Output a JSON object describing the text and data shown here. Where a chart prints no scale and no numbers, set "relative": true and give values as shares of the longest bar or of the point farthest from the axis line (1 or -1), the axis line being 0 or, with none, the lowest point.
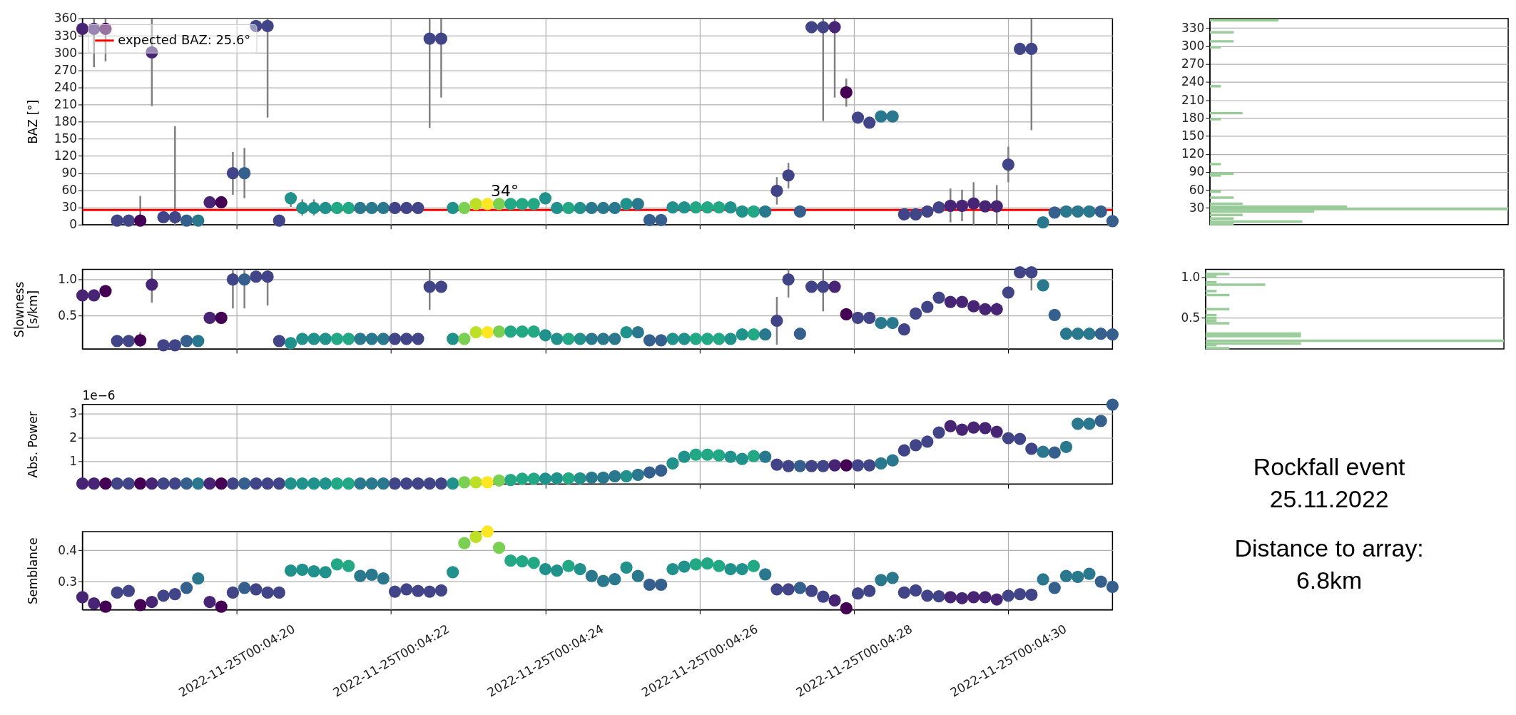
{
  "chart_data": [
    {
      "type": "scatter",
      "ylabel": "BAZ [°]",
      "marker": "circle",
      "grid": true,
      "legend": "top left",
      "tick_labels": "y",
      "x": [
        "2022-11-25T00:04:18.00",
        "2022-11-25T00:04:18.15",
        "2022-11-25T00:04:18.30",
        "2022-11-25T00:04:18.45",
        "2022-11-25T00:04:18.60",
        "2022-11-25T00:04:18.75",
        "2022-11-25T00:04:18.90",
        "2022-11-25T00:04:19.05",
        "2022-11-25T00:04:19.20",
        "2022-11-25T00:04:19.35",
        "2022-11-25T00:04:19.50",
        "2022-11-25T00:04:19.65",
        "2022-11-25T00:04:19.80",
        "2022-11-25T00:04:19.95",
        "2022-11-25T00:04:20.10",
        "2022-11-25T00:04:20.25",
        "2022-11-25T00:04:20.40",
        "2022-11-25T00:04:20.55",
        "2022-11-25T00:04:20.70",
        "2022-11-25T00:04:20.85",
        "2022-11-25T00:04:21.00",
        "2022-11-25T00:04:21.15",
        "2022-11-25T00:04:21.30",
        "2022-11-25T00:04:21.45",
        "2022-11-25T00:04:21.60",
        "2022-11-25T00:04:21.75",
        "2022-11-25T00:04:21.90",
        "2022-11-25T00:04:22.05",
        "2022-11-25T00:04:22.20",
        "2022-11-25T00:04:22.35",
        "2022-11-25T00:04:22.50",
        "2022-11-25T00:04:22.65",
        "2022-11-25T00:04:22.80",
        "2022-11-25T00:04:22.95",
        "2022-11-25T00:04:23.10",
        "2022-11-25T00:04:23.25",
        "2022-11-25T00:04:23.40",
        "2022-11-25T00:04:23.55",
        "2022-11-25T00:04:23.70",
        "2022-11-25T00:04:23.85",
        "2022-11-25T00:04:24.00",
        "2022-11-25T00:04:24.15",
        "2022-11-25T00:04:24.30",
        "2022-11-25T00:04:24.45",
        "2022-11-25T00:04:24.60",
        "2022-11-25T00:04:24.75",
        "2022-11-25T00:04:24.90",
        "2022-11-25T00:04:25.05",
        "2022-11-25T00:04:25.20",
        "2022-11-25T00:04:25.35",
        "2022-11-25T00:04:25.50",
        "2022-11-25T00:04:25.65",
        "2022-11-25T00:04:25.80",
        "2022-11-25T00:04:25.95",
        "2022-11-25T00:04:26.10",
        "2022-11-25T00:04:26.25",
        "2022-11-25T00:04:26.40",
        "2022-11-25T00:04:26.55",
        "2022-11-25T00:04:26.70",
        "2022-11-25T00:04:26.85",
        "2022-11-25T00:04:27.00",
        "2022-11-25T00:04:27.15",
        "2022-11-25T00:04:27.30",
        "2022-11-25T00:04:27.45",
        "2022-11-25T00:04:27.60",
        "2022-11-25T00:04:27.75",
        "2022-11-25T00:04:27.90",
        "2022-11-25T00:04:28.05",
        "2022-11-25T00:04:28.20",
        "2022-11-25T00:04:28.35",
        "2022-11-25T00:04:28.50",
        "2022-11-25T00:04:28.65",
        "2022-11-25T00:04:28.80",
        "2022-11-25T00:04:28.95",
        "2022-11-25T00:04:29.10",
        "2022-11-25T00:04:29.25",
        "2022-11-25T00:04:29.40",
        "2022-11-25T00:04:29.55",
        "2022-11-25T00:04:29.70",
        "2022-11-25T00:04:29.85",
        "2022-11-25T00:04:30.00",
        "2022-11-25T00:04:30.15",
        "2022-11-25T00:04:30.30",
        "2022-11-25T00:04:30.45",
        "2022-11-25T00:04:30.60",
        "2022-11-25T00:04:30.75",
        "2022-11-25T00:04:30.90",
        "2022-11-25T00:04:31.05",
        "2022-11-25T00:04:31.20",
        "2022-11-25T00:04:31.35"
      ],
      "values": [
        342,
        342,
        342,
        7,
        7,
        7,
        301,
        13,
        13,
        7,
        7,
        39,
        39,
        90,
        90,
        347,
        347,
        7,
        46,
        29,
        29,
        29,
        29,
        29,
        29,
        29,
        29,
        29,
        29,
        29,
        325,
        325,
        29,
        29,
        36,
        36,
        36,
        36,
        36,
        36,
        46,
        29,
        29,
        29,
        29,
        29,
        29,
        36,
        36,
        8,
        8,
        30,
        30,
        30,
        30,
        30,
        30,
        23,
        23,
        23,
        59,
        86,
        23,
        345,
        345,
        345,
        231,
        187,
        178,
        189,
        189,
        18,
        18,
        23,
        30,
        33,
        33,
        37,
        32,
        32,
        105,
        307,
        307,
        4,
        21,
        23,
        23,
        23,
        23,
        6
      ],
      "errors": [
        null,
        [
          275,
          360
        ],
        [
          285,
          360
        ],
        null,
        null,
        [
          0,
          50
        ],
        [
          207,
          360
        ],
        null,
        [
          0,
          172
        ],
        null,
        null,
        null,
        null,
        [
          52,
          127
        ],
        [
          46,
          134
        ],
        null,
        [
          187,
          360
        ],
        null,
        [
          31,
          57
        ],
        [
          16,
          44
        ],
        [
          16,
          44
        ],
        null,
        null,
        null,
        null,
        null,
        null,
        null,
        null,
        null,
        [
          169,
          360
        ],
        [
          222,
          360
        ],
        null,
        null,
        null,
        null,
        null,
        null,
        null,
        null,
        null,
        null,
        null,
        null,
        null,
        null,
        null,
        null,
        null,
        null,
        null,
        null,
        null,
        null,
        null,
        null,
        null,
        null,
        null,
        null,
        [
          35,
          83
        ],
        [
          63,
          108
        ],
        null,
        null,
        [
          181,
          360
        ],
        [
          222,
          360
        ],
        [
          206,
          255
        ],
        null,
        null,
        null,
        null,
        null,
        null,
        null,
        null,
        [
          4,
          63
        ],
        [
          6,
          61
        ],
        [
          0,
          74
        ],
        null,
        [
          0,
          69
        ],
        [
          74,
          136
        ],
        null,
        [
          165,
          360
        ],
        null,
        null,
        null,
        null,
        null,
        null,
        null
      ],
      "colors": [
        "#482475",
        "#482475",
        "#440154",
        "#414487",
        "#414487",
        "#440154",
        "#482475",
        "#414487",
        "#414487",
        "#355f8d",
        "#2a788e",
        "#482475",
        "#440154",
        "#414487",
        "#355f8d",
        "#414487",
        "#414487",
        "#414487",
        "#21918c",
        "#21918c",
        "#21918c",
        "#21918c",
        "#22a884",
        "#22a884",
        "#2a788e",
        "#2a788e",
        "#2a788e",
        "#414487",
        "#414487",
        "#414487",
        "#414487",
        "#414487",
        "#21918c",
        "#7ad151",
        "#bddf26",
        "#fde725",
        "#7ad151",
        "#22a884",
        "#22a884",
        "#22a884",
        "#21918c",
        "#21918c",
        "#22a884",
        "#21918c",
        "#2a788e",
        "#2a788e",
        "#2a788e",
        "#21918c",
        "#2a788e",
        "#355f8d",
        "#355f8d",
        "#21918c",
        "#21918c",
        "#22a884",
        "#22a884",
        "#22a884",
        "#21918c",
        "#21918c",
        "#22a884",
        "#2a788e",
        "#414487",
        "#414487",
        "#355f8d",
        "#414487",
        "#414487",
        "#482475",
        "#440154",
        "#414487",
        "#414487",
        "#2a788e",
        "#2a788e",
        "#414487",
        "#414487",
        "#414487",
        "#414487",
        "#482475",
        "#482475",
        "#482475",
        "#482475",
        "#482475",
        "#414487",
        "#414487",
        "#414487",
        "#2a788e",
        "#355f8d",
        "#2a788e",
        "#2a788e",
        "#2a788e",
        "#355f8d",
        "#355f8d"
      ],
      "xlim": [
        "2022-11-25T00:04:18.00",
        "2022-11-25T00:04:31.35"
      ],
      "xticks": [
        "2022-11-25T00:04:20",
        "2022-11-25T00:04:22",
        "2022-11-25T00:04:24",
        "2022-11-25T00:04:26",
        "2022-11-25T00:04:28",
        "2022-11-25T00:04:30"
      ],
      "ylim": [
        0,
        360
      ],
      "yticks": [
        0,
        30,
        60,
        90,
        120,
        150,
        180,
        210,
        240,
        270,
        300,
        330,
        360
      ],
      "ref_lines": [
        {
          "axis": "y",
          "value": 25.6,
          "label": "expected BAZ: 25.6°",
          "color": "#ff0000"
        }
      ],
      "annotations": [
        {
          "text": "34°",
          "x": "2022-11-25T00:04:23.40",
          "y": 34
        }
      ]
    },
    {
      "type": "bar",
      "orientation": "horizontal",
      "relative": true,
      "color": "#99cc99",
      "grid": "y",
      "x": [
        3,
        7,
        12,
        18,
        24,
        28,
        32,
        37,
        47,
        57,
        84,
        87,
        103,
        178,
        188,
        233,
        298,
        308,
        323,
        343
      ],
      "values": [
        0.08,
        0.31,
        0.08,
        0.11,
        0.35,
        1.0,
        0.46,
        0.11,
        0.08,
        0.037,
        0.037,
        0.08,
        0.037,
        0.037,
        0.11,
        0.037,
        0.037,
        0.08,
        0.08,
        0.23
      ],
      "ylim": [
        2,
        346
      ],
      "yticks": [
        30,
        60,
        90,
        120,
        150,
        180,
        210,
        240,
        270,
        300,
        330
      ]
    },
    {
      "type": "scatter",
      "ylabel": "Slowness\n[s/km]",
      "marker": "circle",
      "grid": true,
      "tick_labels": "y",
      "x": [
        "2022-11-25T00:04:18.00",
        "2022-11-25T00:04:18.15",
        "2022-11-25T00:04:18.30",
        "2022-11-25T00:04:18.45",
        "2022-11-25T00:04:18.60",
        "2022-11-25T00:04:18.75",
        "2022-11-25T00:04:18.90",
        "2022-11-25T00:04:19.05",
        "2022-11-25T00:04:19.20",
        "2022-11-25T00:04:19.35",
        "2022-11-25T00:04:19.50",
        "2022-11-25T00:04:19.65",
        "2022-11-25T00:04:19.80",
        "2022-11-25T00:04:19.95",
        "2022-11-25T00:04:20.10",
        "2022-11-25T00:04:20.25",
        "2022-11-25T00:04:20.40",
        "2022-11-25T00:04:20.55",
        "2022-11-25T00:04:20.70",
        "2022-11-25T00:04:20.85",
        "2022-11-25T00:04:21.00",
        "2022-11-25T00:04:21.15",
        "2022-11-25T00:04:21.30",
        "2022-11-25T00:04:21.45",
        "2022-11-25T00:04:21.60",
        "2022-11-25T00:04:21.75",
        "2022-11-25T00:04:21.90",
        "2022-11-25T00:04:22.05",
        "2022-11-25T00:04:22.20",
        "2022-11-25T00:04:22.35",
        "2022-11-25T00:04:22.50",
        "2022-11-25T00:04:22.65",
        "2022-11-25T00:04:22.80",
        "2022-11-25T00:04:22.95",
        "2022-11-25T00:04:23.10",
        "2022-11-25T00:04:23.25",
        "2022-11-25T00:04:23.40",
        "2022-11-25T00:04:23.55",
        "2022-11-25T00:04:23.70",
        "2022-11-25T00:04:23.85",
        "2022-11-25T00:04:24.00",
        "2022-11-25T00:04:24.15",
        "2022-11-25T00:04:24.30",
        "2022-11-25T00:04:24.45",
        "2022-11-25T00:04:24.60",
        "2022-11-25T00:04:24.75",
        "2022-11-25T00:04:24.90",
        "2022-11-25T00:04:25.05",
        "2022-11-25T00:04:25.20",
        "2022-11-25T00:04:25.35",
        "2022-11-25T00:04:25.50",
        "2022-11-25T00:04:25.65",
        "2022-11-25T00:04:25.80",
        "2022-11-25T00:04:25.95",
        "2022-11-25T00:04:26.10",
        "2022-11-25T00:04:26.25",
        "2022-11-25T00:04:26.40",
        "2022-11-25T00:04:26.55",
        "2022-11-25T00:04:26.70",
        "2022-11-25T00:04:26.85",
        "2022-11-25T00:04:27.00",
        "2022-11-25T00:04:27.15",
        "2022-11-25T00:04:27.30",
        "2022-11-25T00:04:27.45",
        "2022-11-25T00:04:27.60",
        "2022-11-25T00:04:27.75",
        "2022-11-25T00:04:27.90",
        "2022-11-25T00:04:28.05",
        "2022-11-25T00:04:28.20",
        "2022-11-25T00:04:28.35",
        "2022-11-25T00:04:28.50",
        "2022-11-25T00:04:28.65",
        "2022-11-25T00:04:28.80",
        "2022-11-25T00:04:28.95",
        "2022-11-25T00:04:29.10",
        "2022-11-25T00:04:29.25",
        "2022-11-25T00:04:29.40",
        "2022-11-25T00:04:29.55",
        "2022-11-25T00:04:29.70",
        "2022-11-25T00:04:29.85",
        "2022-11-25T00:04:30.00",
        "2022-11-25T00:04:30.15",
        "2022-11-25T00:04:30.30",
        "2022-11-25T00:04:30.45",
        "2022-11-25T00:04:30.60",
        "2022-11-25T00:04:30.75",
        "2022-11-25T00:04:30.90",
        "2022-11-25T00:04:31.05",
        "2022-11-25T00:04:31.20",
        "2022-11-25T00:04:31.35"
      ],
      "values": [
        0.78,
        0.78,
        0.84,
        0.15,
        0.15,
        0.16,
        0.93,
        0.09,
        0.09,
        0.15,
        0.15,
        0.47,
        0.47,
        1.0,
        1.0,
        1.04,
        1.04,
        0.15,
        0.12,
        0.18,
        0.18,
        0.18,
        0.18,
        0.18,
        0.18,
        0.18,
        0.18,
        0.18,
        0.18,
        0.18,
        0.9,
        0.9,
        0.18,
        0.18,
        0.27,
        0.27,
        0.28,
        0.28,
        0.28,
        0.28,
        0.23,
        0.18,
        0.18,
        0.18,
        0.18,
        0.18,
        0.18,
        0.27,
        0.27,
        0.16,
        0.16,
        0.18,
        0.18,
        0.18,
        0.18,
        0.18,
        0.18,
        0.24,
        0.24,
        0.24,
        0.43,
        1.0,
        0.25,
        0.9,
        0.9,
        0.9,
        0.52,
        0.47,
        0.47,
        0.4,
        0.4,
        0.31,
        0.53,
        0.62,
        0.75,
        0.69,
        0.69,
        0.63,
        0.59,
        0.59,
        0.82,
        1.1,
        1.1,
        0.92,
        0.51,
        0.25,
        0.25,
        0.25,
        0.25,
        0.24
      ],
      "errors": [
        null,
        null,
        [
          0.78,
          0.9
        ],
        null,
        null,
        [
          0.07,
          0.27
        ],
        [
          0.68,
          1.14
        ],
        null,
        null,
        null,
        null,
        null,
        null,
        [
          0.6,
          1.14
        ],
        [
          0.6,
          1.14
        ],
        null,
        [
          0.64,
          1.14
        ],
        null,
        null,
        null,
        null,
        null,
        null,
        null,
        null,
        null,
        null,
        null,
        null,
        null,
        [
          0.58,
          1.14
        ],
        null,
        null,
        null,
        null,
        null,
        null,
        null,
        null,
        null,
        null,
        null,
        null,
        null,
        null,
        null,
        null,
        null,
        null,
        null,
        null,
        null,
        null,
        null,
        null,
        null,
        null,
        null,
        null,
        null,
        [
          0.1,
          0.76
        ],
        [
          0.75,
          1.14
        ],
        null,
        null,
        [
          0.56,
          1.14
        ],
        null,
        null,
        null,
        null,
        null,
        null,
        null,
        null,
        null,
        null,
        null,
        null,
        null,
        null,
        [
          0.5,
          0.68
        ],
        null,
        null,
        [
          0.85,
          1.1
        ],
        null,
        null,
        null,
        null,
        null,
        null,
        null
      ],
      "colors": [
        "#482475",
        "#482475",
        "#440154",
        "#414487",
        "#414487",
        "#440154",
        "#482475",
        "#414487",
        "#414487",
        "#355f8d",
        "#2a788e",
        "#482475",
        "#440154",
        "#414487",
        "#355f8d",
        "#414487",
        "#414487",
        "#414487",
        "#21918c",
        "#21918c",
        "#21918c",
        "#21918c",
        "#22a884",
        "#22a884",
        "#2a788e",
        "#2a788e",
        "#2a788e",
        "#414487",
        "#414487",
        "#414487",
        "#414487",
        "#414487",
        "#21918c",
        "#7ad151",
        "#bddf26",
        "#fde725",
        "#7ad151",
        "#22a884",
        "#22a884",
        "#22a884",
        "#21918c",
        "#21918c",
        "#22a884",
        "#21918c",
        "#2a788e",
        "#2a788e",
        "#2a788e",
        "#21918c",
        "#2a788e",
        "#355f8d",
        "#355f8d",
        "#21918c",
        "#21918c",
        "#22a884",
        "#22a884",
        "#22a884",
        "#21918c",
        "#21918c",
        "#22a884",
        "#2a788e",
        "#414487",
        "#414487",
        "#355f8d",
        "#414487",
        "#414487",
        "#482475",
        "#440154",
        "#414487",
        "#414487",
        "#2a788e",
        "#2a788e",
        "#414487",
        "#414487",
        "#414487",
        "#414487",
        "#482475",
        "#482475",
        "#482475",
        "#482475",
        "#482475",
        "#414487",
        "#414487",
        "#414487",
        "#2a788e",
        "#355f8d",
        "#2a788e",
        "#2a788e",
        "#2a788e",
        "#355f8d",
        "#355f8d"
      ],
      "xlim": [
        "2022-11-25T00:04:18.00",
        "2022-11-25T00:04:31.35"
      ],
      "xticks": [
        "2022-11-25T00:04:20",
        "2022-11-25T00:04:22",
        "2022-11-25T00:04:24",
        "2022-11-25T00:04:26",
        "2022-11-25T00:04:28",
        "2022-11-25T00:04:30"
      ],
      "ylim": [
        0.04,
        1.14
      ],
      "yticks": [
        0.5,
        {
          "value": 1.0,
          "label": "1.0"
        }
      ]
    },
    {
      "type": "bar",
      "orientation": "horizontal",
      "relative": true,
      "color": "#99cc99",
      "grid": "y",
      "x": [
        0.12,
        0.157,
        0.18,
        0.213,
        0.27,
        0.3,
        0.43,
        0.463,
        0.494,
        0.531,
        0.606,
        0.78,
        0.83,
        0.909,
        0.94,
        1.009,
        1.043
      ],
      "values": [
        0.08,
        0.037,
        0.32,
        1.0,
        0.32,
        0.32,
        0.08,
        0.037,
        0.037,
        0.037,
        0.08,
        0.08,
        0.037,
        0.2,
        0.037,
        0.037,
        0.08
      ],
      "ylim": [
        0.11,
        1.1
      ],
      "yticks": [
        0.5,
        {
          "value": 1.0,
          "label": "1.0"
        }
      ]
    },
    {
      "type": "scatter",
      "ylabel": "Abs. Power",
      "marker": "circle",
      "grid": true,
      "tick_labels": "y",
      "x": [
        "2022-11-25T00:04:18.00",
        "2022-11-25T00:04:18.15",
        "2022-11-25T00:04:18.30",
        "2022-11-25T00:04:18.45",
        "2022-11-25T00:04:18.60",
        "2022-11-25T00:04:18.75",
        "2022-11-25T00:04:18.90",
        "2022-11-25T00:04:19.05",
        "2022-11-25T00:04:19.20",
        "2022-11-25T00:04:19.35",
        "2022-11-25T00:04:19.50",
        "2022-11-25T00:04:19.65",
        "2022-11-25T00:04:19.80",
        "2022-11-25T00:04:19.95",
        "2022-11-25T00:04:20.10",
        "2022-11-25T00:04:20.25",
        "2022-11-25T00:04:20.40",
        "2022-11-25T00:04:20.55",
        "2022-11-25T00:04:20.70",
        "2022-11-25T00:04:20.85",
        "2022-11-25T00:04:21.00",
        "2022-11-25T00:04:21.15",
        "2022-11-25T00:04:21.30",
        "2022-11-25T00:04:21.45",
        "2022-11-25T00:04:21.60",
        "2022-11-25T00:04:21.75",
        "2022-11-25T00:04:21.90",
        "2022-11-25T00:04:22.05",
        "2022-11-25T00:04:22.20",
        "2022-11-25T00:04:22.35",
        "2022-11-25T00:04:22.50",
        "2022-11-25T00:04:22.65",
        "2022-11-25T00:04:22.80",
        "2022-11-25T00:04:22.95",
        "2022-11-25T00:04:23.10",
        "2022-11-25T00:04:23.25",
        "2022-11-25T00:04:23.40",
        "2022-11-25T00:04:23.55",
        "2022-11-25T00:04:23.70",
        "2022-11-25T00:04:23.85",
        "2022-11-25T00:04:24.00",
        "2022-11-25T00:04:24.15",
        "2022-11-25T00:04:24.30",
        "2022-11-25T00:04:24.45",
        "2022-11-25T00:04:24.60",
        "2022-11-25T00:04:24.75",
        "2022-11-25T00:04:24.90",
        "2022-11-25T00:04:25.05",
        "2022-11-25T00:04:25.20",
        "2022-11-25T00:04:25.35",
        "2022-11-25T00:04:25.50",
        "2022-11-25T00:04:25.65",
        "2022-11-25T00:04:25.80",
        "2022-11-25T00:04:25.95",
        "2022-11-25T00:04:26.10",
        "2022-11-25T00:04:26.25",
        "2022-11-25T00:04:26.40",
        "2022-11-25T00:04:26.55",
        "2022-11-25T00:04:26.70",
        "2022-11-25T00:04:26.85",
        "2022-11-25T00:04:27.00",
        "2022-11-25T00:04:27.15",
        "2022-11-25T00:04:27.30",
        "2022-11-25T00:04:27.45",
        "2022-11-25T00:04:27.60",
        "2022-11-25T00:04:27.75",
        "2022-11-25T00:04:27.90",
        "2022-11-25T00:04:28.05",
        "2022-11-25T00:04:28.20",
        "2022-11-25T00:04:28.35",
        "2022-11-25T00:04:28.50",
        "2022-11-25T00:04:28.65",
        "2022-11-25T00:04:28.80",
        "2022-11-25T00:04:28.95",
        "2022-11-25T00:04:29.10",
        "2022-11-25T00:04:29.25",
        "2022-11-25T00:04:29.40",
        "2022-11-25T00:04:29.55",
        "2022-11-25T00:04:29.70",
        "2022-11-25T00:04:29.85",
        "2022-11-25T00:04:30.00",
        "2022-11-25T00:04:30.15",
        "2022-11-25T00:04:30.30",
        "2022-11-25T00:04:30.45",
        "2022-11-25T00:04:30.60",
        "2022-11-25T00:04:30.75",
        "2022-11-25T00:04:30.90",
        "2022-11-25T00:04:31.05",
        "2022-11-25T00:04:31.20",
        "2022-11-25T00:04:31.35"
      ],
      "values": [
        0.05,
        0.05,
        0.05,
        0.05,
        0.05,
        0.05,
        0.05,
        0.05,
        0.05,
        0.05,
        0.05,
        0.05,
        0.05,
        0.05,
        0.05,
        0.05,
        0.05,
        0.05,
        0.05,
        0.05,
        0.05,
        0.05,
        0.05,
        0.05,
        0.05,
        0.05,
        0.05,
        0.05,
        0.05,
        0.05,
        0.05,
        0.05,
        0.05,
        0.1,
        0.1,
        0.1,
        0.18,
        0.2,
        0.25,
        0.25,
        0.25,
        0.27,
        0.27,
        0.27,
        0.3,
        0.3,
        0.36,
        0.36,
        0.42,
        0.52,
        0.6,
        0.9,
        1.18,
        1.27,
        1.27,
        1.24,
        1.18,
        1.09,
        1.21,
        1.18,
        0.85,
        0.79,
        0.79,
        0.79,
        0.79,
        0.82,
        0.82,
        0.82,
        0.82,
        0.9,
        1.03,
        1.45,
        1.67,
        1.82,
        2.21,
        2.48,
        2.33,
        2.42,
        2.4,
        2.24,
        1.97,
        1.94,
        1.52,
        1.39,
        1.36,
        1.6,
        2.58,
        2.58,
        2.7,
        3.39
      ],
      "colors": [
        "#482475",
        "#482475",
        "#440154",
        "#414487",
        "#414487",
        "#440154",
        "#482475",
        "#414487",
        "#414487",
        "#355f8d",
        "#2a788e",
        "#482475",
        "#440154",
        "#414487",
        "#355f8d",
        "#414487",
        "#414487",
        "#414487",
        "#21918c",
        "#21918c",
        "#21918c",
        "#21918c",
        "#22a884",
        "#22a884",
        "#2a788e",
        "#2a788e",
        "#2a788e",
        "#414487",
        "#414487",
        "#414487",
        "#414487",
        "#414487",
        "#21918c",
        "#7ad151",
        "#bddf26",
        "#fde725",
        "#7ad151",
        "#22a884",
        "#22a884",
        "#22a884",
        "#21918c",
        "#21918c",
        "#22a884",
        "#21918c",
        "#2a788e",
        "#2a788e",
        "#2a788e",
        "#21918c",
        "#2a788e",
        "#355f8d",
        "#355f8d",
        "#21918c",
        "#21918c",
        "#22a884",
        "#22a884",
        "#22a884",
        "#21918c",
        "#21918c",
        "#22a884",
        "#2a788e",
        "#414487",
        "#414487",
        "#355f8d",
        "#414487",
        "#414487",
        "#482475",
        "#440154",
        "#414487",
        "#414487",
        "#2a788e",
        "#2a788e",
        "#414487",
        "#414487",
        "#414487",
        "#414487",
        "#482475",
        "#482475",
        "#482475",
        "#482475",
        "#482475",
        "#414487",
        "#414487",
        "#414487",
        "#2a788e",
        "#355f8d",
        "#2a788e",
        "#2a788e",
        "#2a788e",
        "#355f8d",
        "#355f8d"
      ],
      "xlim": [
        "2022-11-25T00:04:18.00",
        "2022-11-25T00:04:31.35"
      ],
      "xticks": [
        "2022-11-25T00:04:20",
        "2022-11-25T00:04:22",
        "2022-11-25T00:04:24",
        "2022-11-25T00:04:26",
        "2022-11-25T00:04:28",
        "2022-11-25T00:04:30"
      ],
      "ylim": [
        0.03,
        3.4
      ],
      "yticks": [
        1,
        2,
        3
      ],
      "annotations": [
        "1e−6"
      ]
    },
    {
      "type": "other",
      "annotations": [
        "Rockfall event",
        "25.11.2022",
        "Distance to array:",
        "6.8km"
      ]
    },
    {
      "type": "scatter",
      "ylabel": "Semblance",
      "marker": "circle",
      "grid": true,
      "x": [
        "2022-11-25T00:04:18.00",
        "2022-11-25T00:04:18.15",
        "2022-11-25T00:04:18.30",
        "2022-11-25T00:04:18.45",
        "2022-11-25T00:04:18.60",
        "2022-11-25T00:04:18.75",
        "2022-11-25T00:04:18.90",
        "2022-11-25T00:04:19.05",
        "2022-11-25T00:04:19.20",
        "2022-11-25T00:04:19.35",
        "2022-11-25T00:04:19.50",
        "2022-11-25T00:04:19.65",
        "2022-11-25T00:04:19.80",
        "2022-11-25T00:04:19.95",
        "2022-11-25T00:04:20.10",
        "2022-11-25T00:04:20.25",
        "2022-11-25T00:04:20.40",
        "2022-11-25T00:04:20.55",
        "2022-11-25T00:04:20.70",
        "2022-11-25T00:04:20.85",
        "2022-11-25T00:04:21.00",
        "2022-11-25T00:04:21.15",
        "2022-11-25T00:04:21.30",
        "2022-11-25T00:04:21.45",
        "2022-11-25T00:04:21.60",
        "2022-11-25T00:04:21.75",
        "2022-11-25T00:04:21.90",
        "2022-11-25T00:04:22.05",
        "2022-11-25T00:04:22.20",
        "2022-11-25T00:04:22.35",
        "2022-11-25T00:04:22.50",
        "2022-11-25T00:04:22.65",
        "2022-11-25T00:04:22.80",
        "2022-11-25T00:04:22.95",
        "2022-11-25T00:04:23.10",
        "2022-11-25T00:04:23.25",
        "2022-11-25T00:04:23.40",
        "2022-11-25T00:04:23.55",
        "2022-11-25T00:04:23.70",
        "2022-11-25T00:04:23.85",
        "2022-11-25T00:04:24.00",
        "2022-11-25T00:04:24.15",
        "2022-11-25T00:04:24.30",
        "2022-11-25T00:04:24.45",
        "2022-11-25T00:04:24.60",
        "2022-11-25T00:04:24.75",
        "2022-11-25T00:04:24.90",
        "2022-11-25T00:04:25.05",
        "2022-11-25T00:04:25.20",
        "2022-11-25T00:04:25.35",
        "2022-11-25T00:04:25.50",
        "2022-11-25T00:04:25.65",
        "2022-11-25T00:04:25.80",
        "2022-11-25T00:04:25.95",
        "2022-11-25T00:04:26.10",
        "2022-11-25T00:04:26.25",
        "2022-11-25T00:04:26.40",
        "2022-11-25T00:04:26.55",
        "2022-11-25T00:04:26.70",
        "2022-11-25T00:04:26.85",
        "2022-11-25T00:04:27.00",
        "2022-11-25T00:04:27.15",
        "2022-11-25T00:04:27.30",
        "2022-11-25T00:04:27.45",
        "2022-11-25T00:04:27.60",
        "2022-11-25T00:04:27.75",
        "2022-11-25T00:04:27.90",
        "2022-11-25T00:04:28.05",
        "2022-11-25T00:04:28.20",
        "2022-11-25T00:04:28.35",
        "2022-11-25T00:04:28.50",
        "2022-11-25T00:04:28.65",
        "2022-11-25T00:04:28.80",
        "2022-11-25T00:04:28.95",
        "2022-11-25T00:04:29.10",
        "2022-11-25T00:04:29.25",
        "2022-11-25T00:04:29.40",
        "2022-11-25T00:04:29.55",
        "2022-11-25T00:04:29.70",
        "2022-11-25T00:04:29.85",
        "2022-11-25T00:04:30.00",
        "2022-11-25T00:04:30.15",
        "2022-11-25T00:04:30.30",
        "2022-11-25T00:04:30.45",
        "2022-11-25T00:04:30.60",
        "2022-11-25T00:04:30.75",
        "2022-11-25T00:04:30.90",
        "2022-11-25T00:04:31.05",
        "2022-11-25T00:04:31.20",
        "2022-11-25T00:04:31.35"
      ],
      "values": [
        0.25,
        0.23,
        0.22,
        0.265,
        0.27,
        0.225,
        0.235,
        0.255,
        0.26,
        0.28,
        0.31,
        0.235,
        0.22,
        0.265,
        0.28,
        0.275,
        0.265,
        0.265,
        0.335,
        0.338,
        0.333,
        0.33,
        0.355,
        0.35,
        0.318,
        0.322,
        0.31,
        0.268,
        0.275,
        0.27,
        0.268,
        0.272,
        0.33,
        0.423,
        0.443,
        0.46,
        0.408,
        0.367,
        0.365,
        0.36,
        0.34,
        0.335,
        0.35,
        0.34,
        0.318,
        0.302,
        0.308,
        0.345,
        0.318,
        0.29,
        0.29,
        0.34,
        0.348,
        0.355,
        0.358,
        0.35,
        0.34,
        0.34,
        0.35,
        0.323,
        0.275,
        0.275,
        0.28,
        0.27,
        0.252,
        0.24,
        0.215,
        0.262,
        0.27,
        0.305,
        0.312,
        0.265,
        0.272,
        0.255,
        0.253,
        0.25,
        0.247,
        0.25,
        0.25,
        0.243,
        0.255,
        0.26,
        0.258,
        0.307,
        0.28,
        0.318,
        0.315,
        0.325,
        0.3,
        0.283
      ],
      "colors": [
        "#482475",
        "#482475",
        "#440154",
        "#414487",
        "#414487",
        "#440154",
        "#482475",
        "#414487",
        "#414487",
        "#355f8d",
        "#2a788e",
        "#482475",
        "#440154",
        "#414487",
        "#355f8d",
        "#414487",
        "#414487",
        "#414487",
        "#21918c",
        "#21918c",
        "#21918c",
        "#21918c",
        "#22a884",
        "#22a884",
        "#2a788e",
        "#2a788e",
        "#2a788e",
        "#414487",
        "#414487",
        "#414487",
        "#414487",
        "#414487",
        "#21918c",
        "#7ad151",
        "#bddf26",
        "#fde725",
        "#7ad151",
        "#22a884",
        "#22a884",
        "#22a884",
        "#21918c",
        "#21918c",
        "#22a884",
        "#21918c",
        "#2a788e",
        "#2a788e",
        "#2a788e",
        "#21918c",
        "#2a788e",
        "#355f8d",
        "#355f8d",
        "#21918c",
        "#21918c",
        "#22a884",
        "#22a884",
        "#22a884",
        "#21918c",
        "#21918c",
        "#22a884",
        "#2a788e",
        "#414487",
        "#414487",
        "#355f8d",
        "#414487",
        "#414487",
        "#482475",
        "#440154",
        "#414487",
        "#414487",
        "#2a788e",
        "#2a788e",
        "#414487",
        "#414487",
        "#414487",
        "#414487",
        "#482475",
        "#482475",
        "#482475",
        "#482475",
        "#482475",
        "#414487",
        "#414487",
        "#414487",
        "#2a788e",
        "#355f8d",
        "#2a788e",
        "#2a788e",
        "#2a788e",
        "#355f8d",
        "#355f8d"
      ],
      "xlim": [
        "2022-11-25T00:04:18.00",
        "2022-11-25T00:04:31.35"
      ],
      "xticks": [
        "2022-11-25T00:04:20",
        "2022-11-25T00:04:22",
        "2022-11-25T00:04:24",
        "2022-11-25T00:04:26",
        "2022-11-25T00:04:28",
        "2022-11-25T00:04:30"
      ],
      "ylim": [
        0.21,
        0.46
      ],
      "yticks": [
        0.3,
        0.4
      ]
    }
  ]
}
